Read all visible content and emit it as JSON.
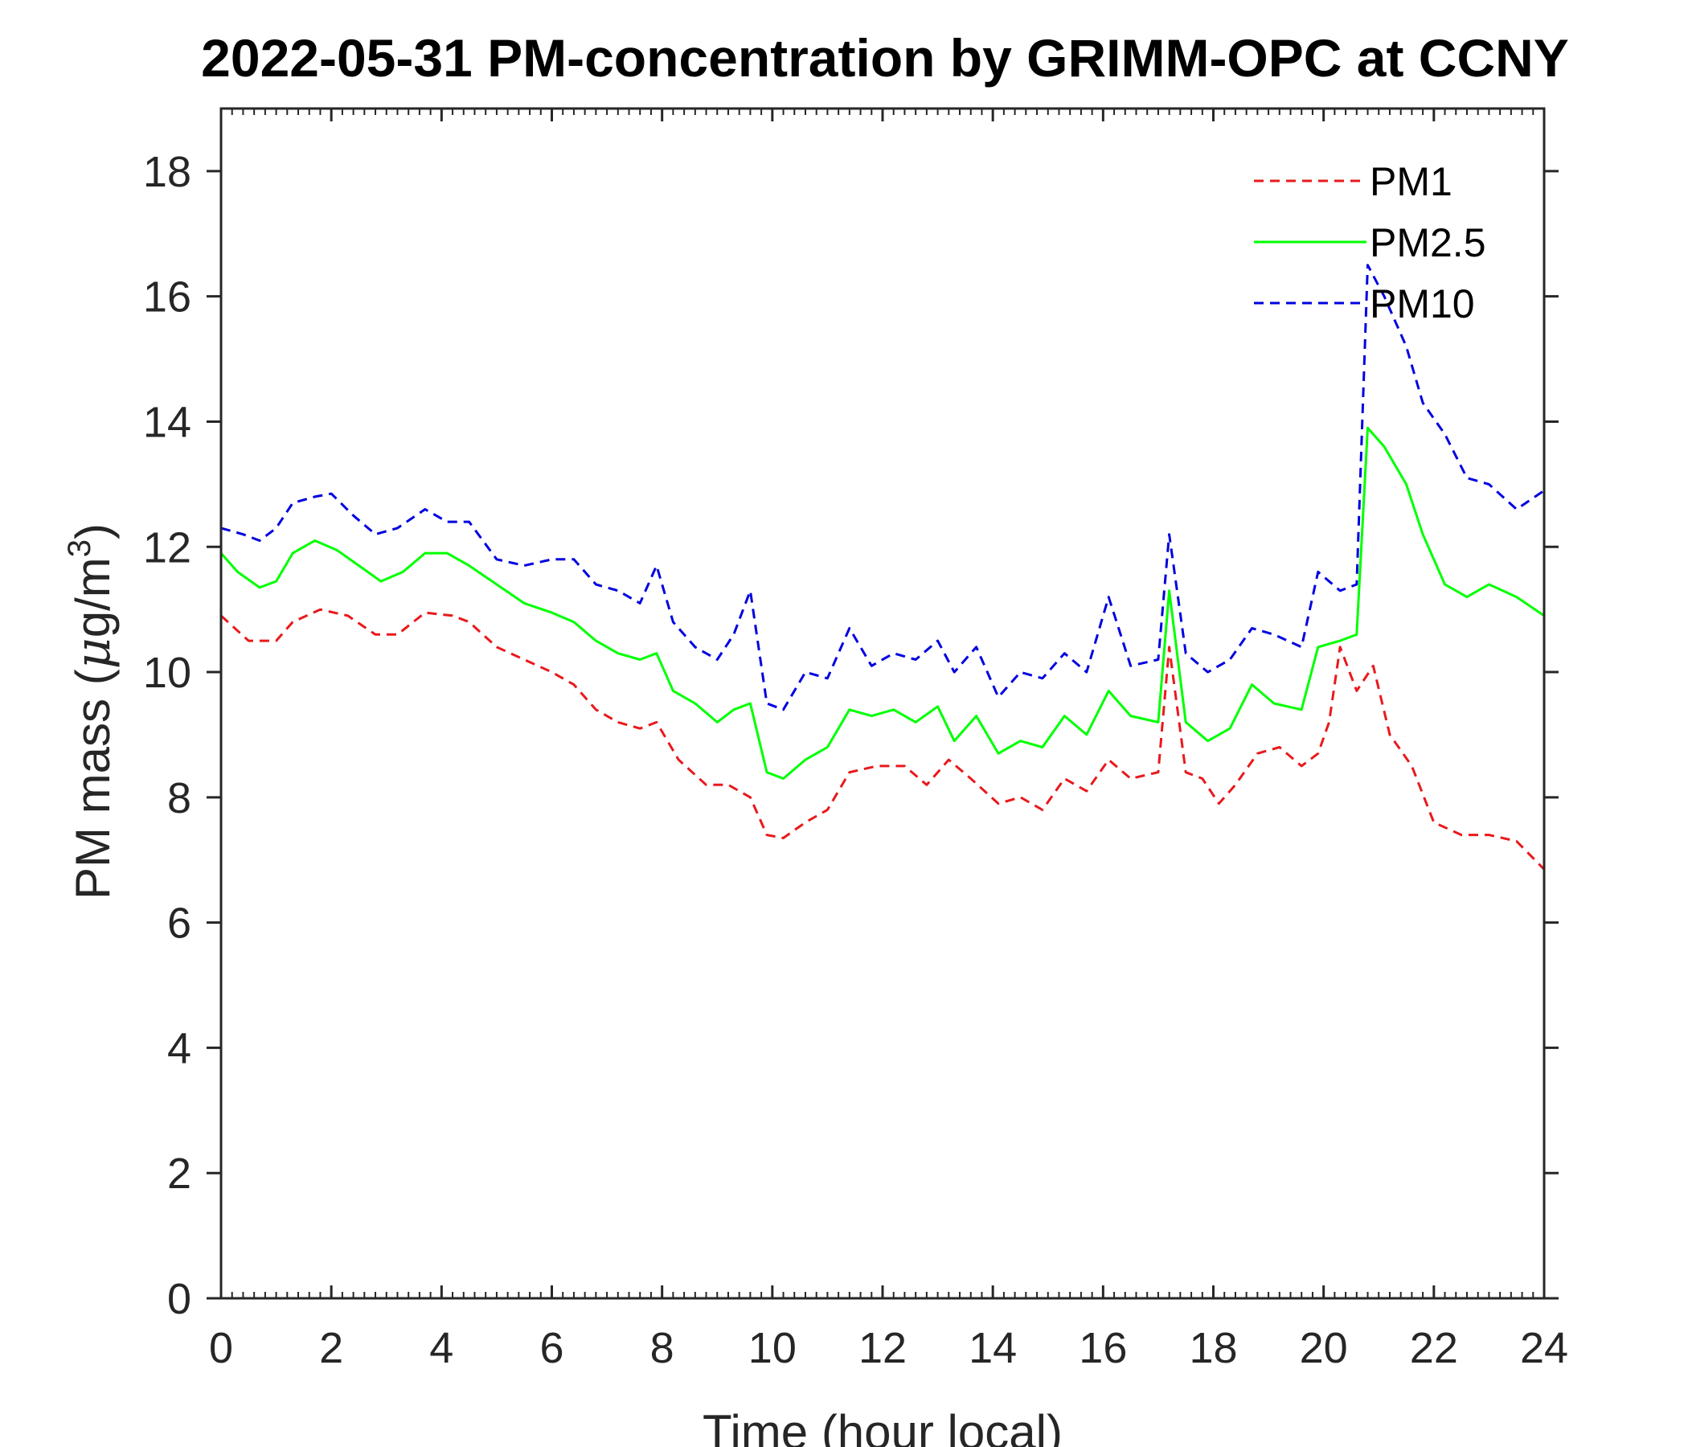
{
  "chart_data": {
    "type": "line",
    "title": "2022-05-31 PM-concentration by GRIMM-OPC at CCNY",
    "xlabel": "Time (hour local)",
    "ylabel": "PM mass (",
    "ylabel_mu": "μ",
    "ylabel_unit": "g/m",
    "ylabel_sup": "3",
    "ylabel_close": ")",
    "xlim": [
      0,
      24
    ],
    "ylim": [
      0,
      19
    ],
    "xticks": [
      0,
      2,
      4,
      6,
      8,
      10,
      12,
      14,
      16,
      18,
      20,
      22,
      24
    ],
    "yticks": [
      0,
      2,
      4,
      6,
      8,
      10,
      12,
      14,
      16,
      18
    ],
    "grid": false,
    "legend_position": "top-right",
    "series": [
      {
        "name": "PM1",
        "color": "#e8191c",
        "dash": "dashed",
        "points": [
          [
            0,
            10.9
          ],
          [
            0.5,
            10.5
          ],
          [
            1,
            10.5
          ],
          [
            1.3,
            10.8
          ],
          [
            1.8,
            11.0
          ],
          [
            2.3,
            10.9
          ],
          [
            2.8,
            10.6
          ],
          [
            3.2,
            10.6
          ],
          [
            3.7,
            10.95
          ],
          [
            4.2,
            10.9
          ],
          [
            4.5,
            10.8
          ],
          [
            5,
            10.4
          ],
          [
            5.5,
            10.2
          ],
          [
            6,
            10.0
          ],
          [
            6.4,
            9.8
          ],
          [
            6.8,
            9.4
          ],
          [
            7.2,
            9.2
          ],
          [
            7.6,
            9.1
          ],
          [
            7.9,
            9.2
          ],
          [
            8.3,
            8.6
          ],
          [
            8.8,
            8.2
          ],
          [
            9.2,
            8.2
          ],
          [
            9.6,
            8.0
          ],
          [
            9.9,
            7.4
          ],
          [
            10.2,
            7.35
          ],
          [
            10.6,
            7.6
          ],
          [
            11,
            7.8
          ],
          [
            11.4,
            8.4
          ],
          [
            11.9,
            8.5
          ],
          [
            12.4,
            8.5
          ],
          [
            12.8,
            8.2
          ],
          [
            13.2,
            8.6
          ],
          [
            13.6,
            8.3
          ],
          [
            14.1,
            7.9
          ],
          [
            14.5,
            8.0
          ],
          [
            14.9,
            7.8
          ],
          [
            15.3,
            8.3
          ],
          [
            15.7,
            8.1
          ],
          [
            16.1,
            8.6
          ],
          [
            16.5,
            8.3
          ],
          [
            17.0,
            8.4
          ],
          [
            17.2,
            10.4
          ],
          [
            17.5,
            8.4
          ],
          [
            17.8,
            8.3
          ],
          [
            18.1,
            7.9
          ],
          [
            18.4,
            8.2
          ],
          [
            18.8,
            8.7
          ],
          [
            19.2,
            8.8
          ],
          [
            19.6,
            8.5
          ],
          [
            19.9,
            8.7
          ],
          [
            20.1,
            9.2
          ],
          [
            20.3,
            10.4
          ],
          [
            20.6,
            9.7
          ],
          [
            20.9,
            10.1
          ],
          [
            21.2,
            9.0
          ],
          [
            21.6,
            8.5
          ],
          [
            22,
            7.6
          ],
          [
            22.5,
            7.4
          ],
          [
            23,
            7.4
          ],
          [
            23.5,
            7.3
          ],
          [
            24,
            6.85
          ]
        ]
      },
      {
        "name": "PM2.5",
        "color": "#00ff00",
        "dash": "solid",
        "points": [
          [
            0,
            11.9
          ],
          [
            0.3,
            11.6
          ],
          [
            0.7,
            11.35
          ],
          [
            1,
            11.45
          ],
          [
            1.3,
            11.9
          ],
          [
            1.7,
            12.1
          ],
          [
            2.1,
            11.95
          ],
          [
            2.5,
            11.7
          ],
          [
            2.9,
            11.45
          ],
          [
            3.3,
            11.6
          ],
          [
            3.7,
            11.9
          ],
          [
            4.1,
            11.9
          ],
          [
            4.5,
            11.7
          ],
          [
            5,
            11.4
          ],
          [
            5.5,
            11.1
          ],
          [
            6,
            10.95
          ],
          [
            6.4,
            10.8
          ],
          [
            6.8,
            10.5
          ],
          [
            7.2,
            10.3
          ],
          [
            7.6,
            10.2
          ],
          [
            7.9,
            10.3
          ],
          [
            8.2,
            9.7
          ],
          [
            8.6,
            9.5
          ],
          [
            9,
            9.2
          ],
          [
            9.3,
            9.4
          ],
          [
            9.6,
            9.5
          ],
          [
            9.9,
            8.4
          ],
          [
            10.2,
            8.3
          ],
          [
            10.6,
            8.6
          ],
          [
            11,
            8.8
          ],
          [
            11.4,
            9.4
          ],
          [
            11.8,
            9.3
          ],
          [
            12.2,
            9.4
          ],
          [
            12.6,
            9.2
          ],
          [
            13.0,
            9.45
          ],
          [
            13.3,
            8.9
          ],
          [
            13.7,
            9.3
          ],
          [
            14.1,
            8.7
          ],
          [
            14.5,
            8.9
          ],
          [
            14.9,
            8.8
          ],
          [
            15.3,
            9.3
          ],
          [
            15.7,
            9.0
          ],
          [
            16.1,
            9.7
          ],
          [
            16.5,
            9.3
          ],
          [
            17.0,
            9.2
          ],
          [
            17.2,
            11.3
          ],
          [
            17.5,
            9.2
          ],
          [
            17.9,
            8.9
          ],
          [
            18.3,
            9.1
          ],
          [
            18.7,
            9.8
          ],
          [
            19.1,
            9.5
          ],
          [
            19.6,
            9.4
          ],
          [
            19.9,
            10.4
          ],
          [
            20.3,
            10.5
          ],
          [
            20.6,
            10.6
          ],
          [
            20.8,
            13.9
          ],
          [
            21.1,
            13.6
          ],
          [
            21.5,
            13.0
          ],
          [
            21.8,
            12.2
          ],
          [
            22.2,
            11.4
          ],
          [
            22.6,
            11.2
          ],
          [
            23,
            11.4
          ],
          [
            23.5,
            11.2
          ],
          [
            24,
            10.9
          ]
        ]
      },
      {
        "name": "PM10",
        "color": "#0000e0",
        "dash": "dashed",
        "points": [
          [
            0,
            12.3
          ],
          [
            0.4,
            12.2
          ],
          [
            0.7,
            12.1
          ],
          [
            1,
            12.3
          ],
          [
            1.3,
            12.7
          ],
          [
            1.7,
            12.8
          ],
          [
            2,
            12.85
          ],
          [
            2.4,
            12.5
          ],
          [
            2.8,
            12.2
          ],
          [
            3.2,
            12.3
          ],
          [
            3.7,
            12.6
          ],
          [
            4.1,
            12.4
          ],
          [
            4.5,
            12.4
          ],
          [
            5,
            11.8
          ],
          [
            5.5,
            11.7
          ],
          [
            6,
            11.8
          ],
          [
            6.4,
            11.8
          ],
          [
            6.8,
            11.4
          ],
          [
            7.2,
            11.3
          ],
          [
            7.6,
            11.1
          ],
          [
            7.9,
            11.7
          ],
          [
            8.2,
            10.8
          ],
          [
            8.6,
            10.4
          ],
          [
            9,
            10.2
          ],
          [
            9.3,
            10.6
          ],
          [
            9.6,
            11.3
          ],
          [
            9.9,
            9.5
          ],
          [
            10.2,
            9.4
          ],
          [
            10.6,
            10.0
          ],
          [
            11,
            9.9
          ],
          [
            11.4,
            10.7
          ],
          [
            11.8,
            10.1
          ],
          [
            12.2,
            10.3
          ],
          [
            12.6,
            10.2
          ],
          [
            13,
            10.5
          ],
          [
            13.3,
            10.0
          ],
          [
            13.7,
            10.4
          ],
          [
            14.1,
            9.6
          ],
          [
            14.5,
            10.0
          ],
          [
            14.9,
            9.9
          ],
          [
            15.3,
            10.3
          ],
          [
            15.7,
            10.0
          ],
          [
            16.1,
            11.2
          ],
          [
            16.5,
            10.1
          ],
          [
            17.0,
            10.2
          ],
          [
            17.2,
            12.2
          ],
          [
            17.5,
            10.3
          ],
          [
            17.9,
            10.0
          ],
          [
            18.3,
            10.2
          ],
          [
            18.7,
            10.7
          ],
          [
            19.1,
            10.6
          ],
          [
            19.6,
            10.4
          ],
          [
            19.9,
            11.6
          ],
          [
            20.3,
            11.3
          ],
          [
            20.6,
            11.4
          ],
          [
            20.8,
            16.5
          ],
          [
            21.1,
            16.0
          ],
          [
            21.5,
            15.2
          ],
          [
            21.8,
            14.3
          ],
          [
            22.2,
            13.8
          ],
          [
            22.6,
            13.1
          ],
          [
            23,
            13.0
          ],
          [
            23.5,
            12.6
          ],
          [
            24,
            12.9
          ]
        ]
      }
    ]
  }
}
